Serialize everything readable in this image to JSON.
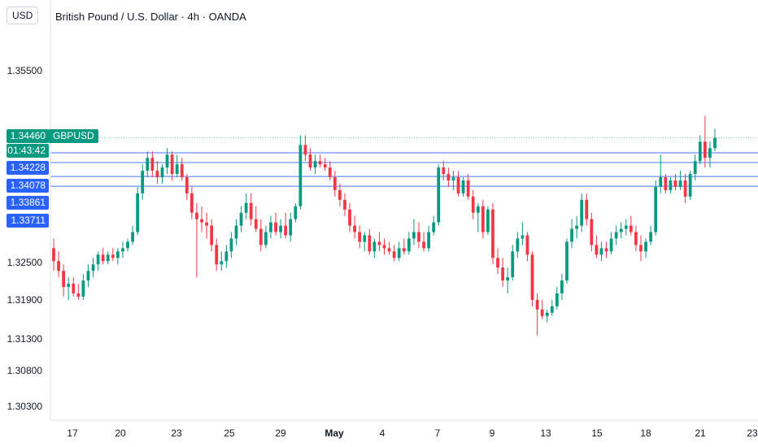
{
  "header": {
    "currency": "USD",
    "title": "British Pound / U.S. Dollar · 4h · OANDA"
  },
  "last_price": {
    "value": "1.34460",
    "countdown": "01:43:42",
    "symbol": "GBPUSD"
  },
  "level_tags": [
    "1.34228",
    "1.34078",
    "1.33861",
    "1.33711"
  ],
  "colors": {
    "up": "#089981",
    "down": "#f23645",
    "level": "#2962ff",
    "last": "#089981"
  },
  "chart_data": {
    "type": "candlestick",
    "symbol": "GBPUSD",
    "timeframe": "4h",
    "yaxis_ticks": [
      "1.35500",
      "1.32500",
      "1.31900",
      "1.31300",
      "1.30800",
      "1.30300"
    ],
    "xaxis_ticks": [
      "17",
      "20",
      "23",
      "25",
      "29",
      "May",
      "4",
      "7",
      "9",
      "13",
      "15",
      "18",
      "21",
      "23"
    ],
    "horizontal_levels": [
      1.3446,
      1.34228,
      1.34078,
      1.33861,
      1.33711
    ],
    "candles": [
      [
        1.3275,
        1.329,
        1.324,
        1.3255
      ],
      [
        1.3255,
        1.327,
        1.323,
        1.324
      ],
      [
        1.324,
        1.325,
        1.32,
        1.3215
      ],
      [
        1.3215,
        1.323,
        1.3195,
        1.322
      ],
      [
        1.322,
        1.323,
        1.32,
        1.3205
      ],
      [
        1.3205,
        1.322,
        1.3195,
        1.32
      ],
      [
        1.32,
        1.3235,
        1.3195,
        1.3225
      ],
      [
        1.3225,
        1.325,
        1.3215,
        1.324
      ],
      [
        1.324,
        1.326,
        1.323,
        1.325
      ],
      [
        1.325,
        1.327,
        1.324,
        1.3265
      ],
      [
        1.3265,
        1.3275,
        1.325,
        1.3255
      ],
      [
        1.3255,
        1.327,
        1.325,
        1.3265
      ],
      [
        1.3265,
        1.3275,
        1.3255,
        1.326
      ],
      [
        1.326,
        1.3275,
        1.325,
        1.327
      ],
      [
        1.327,
        1.3285,
        1.326,
        1.3275
      ],
      [
        1.3275,
        1.329,
        1.327,
        1.3285
      ],
      [
        1.3285,
        1.331,
        1.328,
        1.33
      ],
      [
        1.33,
        1.337,
        1.3295,
        1.336
      ],
      [
        1.336,
        1.3405,
        1.335,
        1.3395
      ],
      [
        1.3395,
        1.3425,
        1.3385,
        1.3415
      ],
      [
        1.3415,
        1.3425,
        1.3385,
        1.3395
      ],
      [
        1.3395,
        1.341,
        1.3375,
        1.3385
      ],
      [
        1.3385,
        1.3405,
        1.3375,
        1.34
      ],
      [
        1.34,
        1.343,
        1.339,
        1.342
      ],
      [
        1.342,
        1.3425,
        1.338,
        1.339
      ],
      [
        1.339,
        1.342,
        1.3385,
        1.3405
      ],
      [
        1.3405,
        1.3415,
        1.338,
        1.3385
      ],
      [
        1.3385,
        1.339,
        1.335,
        1.336
      ],
      [
        1.336,
        1.337,
        1.332,
        1.333
      ],
      [
        1.333,
        1.3345,
        1.323,
        1.332
      ],
      [
        1.332,
        1.334,
        1.33,
        1.3315
      ],
      [
        1.3315,
        1.333,
        1.329,
        1.331
      ],
      [
        1.331,
        1.332,
        1.327,
        1.328
      ],
      [
        1.328,
        1.329,
        1.324,
        1.325
      ],
      [
        1.325,
        1.327,
        1.324,
        1.3255
      ],
      [
        1.3255,
        1.328,
        1.3245,
        1.327
      ],
      [
        1.327,
        1.33,
        1.326,
        1.329
      ],
      [
        1.329,
        1.332,
        1.328,
        1.331
      ],
      [
        1.331,
        1.334,
        1.33,
        1.333
      ],
      [
        1.333,
        1.336,
        1.332,
        1.3345
      ],
      [
        1.3345,
        1.336,
        1.331,
        1.332
      ],
      [
        1.332,
        1.334,
        1.33,
        1.3305
      ],
      [
        1.3305,
        1.332,
        1.327,
        1.328
      ],
      [
        1.328,
        1.331,
        1.3275,
        1.33
      ],
      [
        1.33,
        1.3325,
        1.329,
        1.3315
      ],
      [
        1.3315,
        1.333,
        1.3295,
        1.33
      ],
      [
        1.33,
        1.332,
        1.329,
        1.331
      ],
      [
        1.331,
        1.333,
        1.329,
        1.3295
      ],
      [
        1.3295,
        1.333,
        1.3285,
        1.332
      ],
      [
        1.332,
        1.3345,
        1.3315,
        1.334
      ],
      [
        1.334,
        1.345,
        1.3335,
        1.3435
      ],
      [
        1.3435,
        1.345,
        1.341,
        1.342
      ],
      [
        1.342,
        1.343,
        1.3395,
        1.34
      ],
      [
        1.34,
        1.342,
        1.339,
        1.341
      ],
      [
        1.341,
        1.342,
        1.34,
        1.3405
      ],
      [
        1.3405,
        1.3415,
        1.3395,
        1.34
      ],
      [
        1.34,
        1.341,
        1.338,
        1.3385
      ],
      [
        1.3385,
        1.3395,
        1.3355,
        1.3365
      ],
      [
        1.3365,
        1.3375,
        1.334,
        1.335
      ],
      [
        1.335,
        1.336,
        1.3325,
        1.3335
      ],
      [
        1.3335,
        1.3345,
        1.33,
        1.331
      ],
      [
        1.331,
        1.3325,
        1.329,
        1.33
      ],
      [
        1.33,
        1.331,
        1.3275,
        1.3285
      ],
      [
        1.3285,
        1.33,
        1.327,
        1.3295
      ],
      [
        1.3295,
        1.3305,
        1.3265,
        1.327
      ],
      [
        1.327,
        1.329,
        1.326,
        1.3285
      ],
      [
        1.3285,
        1.33,
        1.327,
        1.328
      ],
      [
        1.328,
        1.329,
        1.3265,
        1.3275
      ],
      [
        1.3275,
        1.3285,
        1.3265,
        1.327
      ],
      [
        1.327,
        1.328,
        1.3255,
        1.326
      ],
      [
        1.326,
        1.3285,
        1.3255,
        1.3275
      ],
      [
        1.3275,
        1.329,
        1.3265,
        1.327
      ],
      [
        1.327,
        1.33,
        1.3265,
        1.329
      ],
      [
        1.329,
        1.332,
        1.328,
        1.33
      ],
      [
        1.33,
        1.3315,
        1.3275,
        1.3285
      ],
      [
        1.3285,
        1.33,
        1.327,
        1.3275
      ],
      [
        1.3275,
        1.331,
        1.327,
        1.33
      ],
      [
        1.33,
        1.3325,
        1.3295,
        1.3315
      ],
      [
        1.3315,
        1.3405,
        1.331,
        1.34
      ],
      [
        1.34,
        1.341,
        1.338,
        1.339
      ],
      [
        1.339,
        1.34,
        1.337,
        1.338
      ],
      [
        1.338,
        1.3395,
        1.3365,
        1.3385
      ],
      [
        1.3385,
        1.3395,
        1.3355,
        1.336
      ],
      [
        1.336,
        1.3385,
        1.3355,
        1.338
      ],
      [
        1.338,
        1.339,
        1.335,
        1.3355
      ],
      [
        1.3355,
        1.3365,
        1.332,
        1.333
      ],
      [
        1.333,
        1.3345,
        1.33,
        1.334
      ],
      [
        1.334,
        1.335,
        1.329,
        1.33
      ],
      [
        1.33,
        1.334,
        1.3295,
        1.3335
      ],
      [
        1.3335,
        1.3345,
        1.325,
        1.326
      ],
      [
        1.326,
        1.3275,
        1.3235,
        1.3245
      ],
      [
        1.3245,
        1.326,
        1.3215,
        1.3225
      ],
      [
        1.3225,
        1.3245,
        1.3205,
        1.323
      ],
      [
        1.323,
        1.328,
        1.3225,
        1.327
      ],
      [
        1.327,
        1.33,
        1.326,
        1.329
      ],
      [
        1.329,
        1.3315,
        1.328,
        1.3295
      ],
      [
        1.3295,
        1.33,
        1.3255,
        1.3265
      ],
      [
        1.3265,
        1.327,
        1.3185,
        1.3195
      ],
      [
        1.3195,
        1.3205,
        1.314,
        1.318
      ],
      [
        1.318,
        1.3195,
        1.3165,
        1.317
      ],
      [
        1.317,
        1.318,
        1.316,
        1.3175
      ],
      [
        1.3175,
        1.3195,
        1.317,
        1.3185
      ],
      [
        1.3185,
        1.3215,
        1.318,
        1.3205
      ],
      [
        1.3205,
        1.3235,
        1.3195,
        1.3225
      ],
      [
        1.3225,
        1.329,
        1.322,
        1.3285
      ],
      [
        1.3285,
        1.332,
        1.3275,
        1.3305
      ],
      [
        1.3305,
        1.3325,
        1.329,
        1.331
      ],
      [
        1.331,
        1.336,
        1.33,
        1.335
      ],
      [
        1.335,
        1.336,
        1.331,
        1.332
      ],
      [
        1.332,
        1.333,
        1.327,
        1.328
      ],
      [
        1.328,
        1.3295,
        1.326,
        1.3265
      ],
      [
        1.3265,
        1.3285,
        1.3255,
        1.3275
      ],
      [
        1.3275,
        1.3285,
        1.326,
        1.327
      ],
      [
        1.327,
        1.33,
        1.3265,
        1.329
      ],
      [
        1.329,
        1.331,
        1.328,
        1.33
      ],
      [
        1.33,
        1.3315,
        1.329,
        1.3305
      ],
      [
        1.3305,
        1.332,
        1.3295,
        1.331
      ],
      [
        1.331,
        1.3325,
        1.3295,
        1.33
      ],
      [
        1.33,
        1.331,
        1.327,
        1.328
      ],
      [
        1.328,
        1.3295,
        1.3255,
        1.327
      ],
      [
        1.327,
        1.329,
        1.326,
        1.3285
      ],
      [
        1.3285,
        1.331,
        1.328,
        1.33
      ],
      [
        1.33,
        1.338,
        1.3295,
        1.337
      ],
      [
        1.337,
        1.342,
        1.336,
        1.3385
      ],
      [
        1.3385,
        1.339,
        1.336,
        1.3365
      ],
      [
        1.3365,
        1.3385,
        1.336,
        1.338
      ],
      [
        1.338,
        1.339,
        1.3365,
        1.337
      ],
      [
        1.337,
        1.3395,
        1.3365,
        1.338
      ],
      [
        1.338,
        1.339,
        1.3345,
        1.3355
      ],
      [
        1.3355,
        1.3395,
        1.335,
        1.339
      ],
      [
        1.339,
        1.342,
        1.338,
        1.341
      ],
      [
        1.341,
        1.345,
        1.3405,
        1.344
      ],
      [
        1.344,
        1.348,
        1.34,
        1.3415
      ],
      [
        1.3415,
        1.344,
        1.34,
        1.343
      ],
      [
        1.343,
        1.346,
        1.3425,
        1.3446
      ]
    ]
  }
}
